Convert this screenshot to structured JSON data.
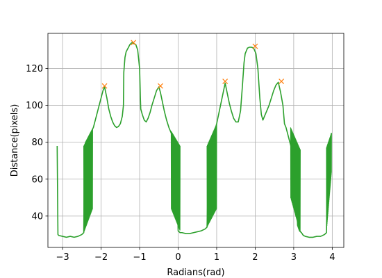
{
  "chart_data": {
    "type": "line",
    "title": "",
    "xlabel": "Radians(rad)",
    "ylabel": "Distance(pixels)",
    "xlim": [
      -3.38,
      4.3
    ],
    "ylim": [
      23,
      139
    ],
    "grid": true,
    "xticks": [
      -3,
      -2,
      -1,
      0,
      1,
      2,
      3,
      4
    ],
    "yticks": [
      40,
      60,
      80,
      100,
      120
    ],
    "line_color": "#2ca02c",
    "marker_color": "#ff7f0e",
    "series": [
      {
        "type": "line",
        "x": [
          -3.14,
          -3.12,
          -3.1,
          -3.0,
          -2.9,
          -2.8,
          -2.7,
          -2.6,
          -2.5,
          -2.45,
          -2.43,
          -2.4,
          -2.35,
          -2.3,
          -2.25,
          -2.2,
          -2.15,
          -2.1,
          -2.05,
          -2.0,
          -1.95,
          -1.91,
          -1.85,
          -1.8,
          -1.75,
          -1.7,
          -1.65,
          -1.6,
          -1.55,
          -1.5,
          -1.45,
          -1.42,
          -1.41,
          -1.38,
          -1.35,
          -1.3,
          -1.25,
          -1.2,
          -1.16,
          -1.1,
          -1.05,
          -1.0,
          -0.98,
          -0.97,
          -0.93,
          -0.88,
          -0.83,
          -0.78,
          -0.73,
          -0.68,
          -0.62,
          -0.56,
          -0.5,
          -0.46,
          -0.42,
          -0.36,
          -0.3,
          -0.24,
          -0.18,
          -0.12,
          -0.08,
          -0.05,
          0.0,
          0.05,
          0.1,
          0.2,
          0.3,
          0.4,
          0.5,
          0.6,
          0.7,
          0.75,
          0.8,
          0.85,
          0.9,
          0.95,
          1.0,
          1.05,
          1.1,
          1.15,
          1.22,
          1.28,
          1.33,
          1.38,
          1.44,
          1.5,
          1.56,
          1.62,
          1.67,
          1.71,
          1.74,
          1.76,
          1.8,
          1.85,
          1.9,
          1.96,
          2.02,
          2.07,
          2.12,
          2.16,
          2.2,
          2.24,
          2.3,
          2.36,
          2.42,
          2.48,
          2.54,
          2.6,
          2.66,
          2.72,
          2.76,
          2.8,
          2.85,
          2.9,
          2.95,
          3.0,
          3.05,
          3.1,
          3.15,
          3.2,
          3.25,
          3.3,
          3.4,
          3.5,
          3.6,
          3.7,
          3.8,
          3.85,
          3.88,
          3.92,
          3.96,
          3.98
        ],
        "y": [
          78,
          30,
          29.5,
          29,
          28.5,
          29,
          28.5,
          29,
          30,
          31,
          78,
          80,
          82,
          84,
          86,
          88,
          92,
          96,
          100,
          104,
          108,
          110,
          104,
          98,
          94,
          91,
          89,
          88,
          88.5,
          90,
          94,
          100,
          118,
          126,
          129,
          131,
          133,
          134,
          133.5,
          133,
          130,
          120,
          104,
          98,
          95,
          92,
          91,
          93,
          96,
          100,
          104,
          108,
          110,
          107,
          103,
          97,
          92,
          88,
          85,
          82,
          80,
          78,
          32,
          31,
          31,
          30.5,
          30.5,
          31,
          31.5,
          32,
          33,
          34,
          78,
          81,
          83,
          86,
          90,
          95,
          100,
          105,
          112,
          106,
          101,
          97,
          93,
          91,
          91,
          97,
          111,
          123,
          128,
          129,
          131,
          131.5,
          131.5,
          131,
          128,
          120,
          104,
          95,
          92,
          94,
          97,
          100,
          104,
          108,
          111,
          112.5,
          107,
          100,
          90,
          88,
          84,
          80,
          76,
          72,
          68,
          35,
          32,
          31,
          29.5,
          29,
          28.5,
          28.5,
          29,
          29,
          30,
          31,
          77,
          80,
          83,
          85
        ]
      }
    ],
    "bands": [
      {
        "x0": -2.45,
        "x1": -2.22,
        "y_min_start": 31,
        "y_min_end": 44,
        "y_max_start": 78,
        "y_max_end": 87
      },
      {
        "x0": -0.18,
        "x1": 0.05,
        "y_min_start": 44,
        "y_min_end": 32,
        "y_max_start": 86,
        "y_max_end": 78
      },
      {
        "x0": 0.75,
        "x1": 1.0,
        "y_min_start": 34,
        "y_min_end": 44,
        "y_max_start": 78,
        "y_max_end": 90
      },
      {
        "x0": 2.92,
        "x1": 3.17,
        "y_min_start": 50,
        "y_min_end": 31,
        "y_max_start": 88,
        "y_max_end": 76
      },
      {
        "x0": 3.85,
        "x1": 3.98,
        "y_min_start": 32,
        "y_min_end": 64,
        "y_max_start": 77,
        "y_max_end": 85
      }
    ],
    "peaks": {
      "x": [
        -1.91,
        -1.16,
        -0.46,
        1.22,
        2.0,
        2.68
      ],
      "y": [
        110.5,
        134,
        110.5,
        113,
        132,
        113
      ]
    }
  }
}
